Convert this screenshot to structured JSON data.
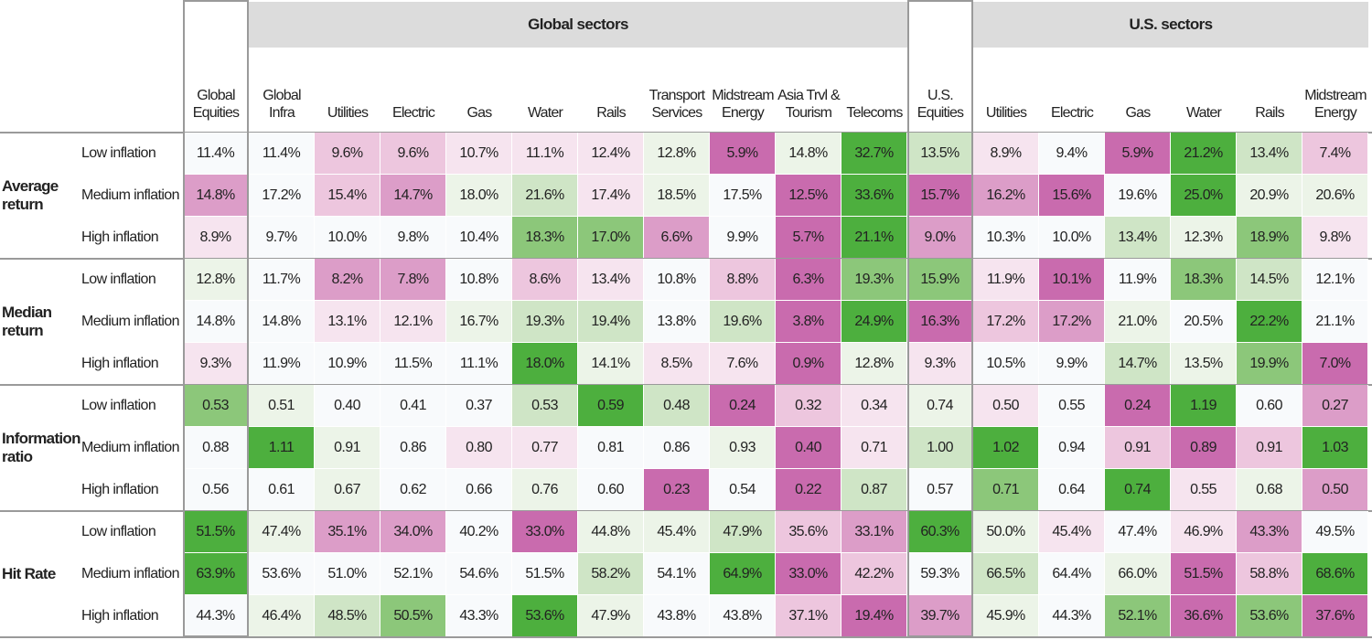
{
  "header": {
    "groups": [
      "Global sectors",
      "U.S. sectors"
    ],
    "columns": [
      "Global Equities",
      "Global Infra",
      "Utilities",
      "Electric",
      "Gas",
      "Water",
      "Rails",
      "Transport Services",
      "Midstream Energy",
      "Asia Trvl & Tourism",
      "Telecoms",
      "U.S. Equities",
      "Utilities",
      "Electric",
      "Gas",
      "Water",
      "Rails",
      "Midstream Energy"
    ]
  },
  "sections": [
    {
      "label": "Average return",
      "rows": [
        {
          "label": "Low inflation",
          "values": [
            "11.4%",
            "11.4%",
            "9.6%",
            "9.6%",
            "10.7%",
            "11.1%",
            "12.4%",
            "12.8%",
            "5.9%",
            "14.8%",
            "32.7%",
            "13.5%",
            "8.9%",
            "9.4%",
            "5.9%",
            "21.2%",
            "13.4%",
            "7.4%"
          ],
          "colors": [
            "#f8fafc",
            "#f8fafc",
            "#edc6de",
            "#edc6de",
            "#f6e4ef",
            "#f6e4ef",
            "#f6e4ef",
            "#ecf4e8",
            "#c96bae",
            "#ecf4e8",
            "#4daf3e",
            "#cfe5c6",
            "#f6e4ef",
            "#f8fafc",
            "#c96bae",
            "#4daf3e",
            "#cfe5c6",
            "#edc6de"
          ]
        },
        {
          "label": "Medium inflation",
          "values": [
            "14.8%",
            "17.2%",
            "15.4%",
            "14.7%",
            "18.0%",
            "21.6%",
            "17.4%",
            "18.5%",
            "17.5%",
            "12.5%",
            "33.6%",
            "15.7%",
            "16.2%",
            "15.6%",
            "19.6%",
            "25.0%",
            "20.9%",
            "20.6%"
          ],
          "colors": [
            "#dc9dc8",
            "#f8fafc",
            "#edc6de",
            "#dc9dc8",
            "#ecf4e8",
            "#cfe5c6",
            "#f6e4ef",
            "#ecf4e8",
            "#f8fafc",
            "#c96bae",
            "#4daf3e",
            "#c96bae",
            "#dc9dc8",
            "#c96bae",
            "#f8fafc",
            "#4daf3e",
            "#ecf4e8",
            "#ecf4e8"
          ]
        },
        {
          "label": "High inflation",
          "values": [
            "8.9%",
            "9.7%",
            "10.0%",
            "9.8%",
            "10.4%",
            "18.3%",
            "17.0%",
            "6.6%",
            "9.9%",
            "5.7%",
            "21.1%",
            "9.0%",
            "10.3%",
            "10.0%",
            "13.4%",
            "12.3%",
            "18.9%",
            "9.8%"
          ],
          "colors": [
            "#f6e4ef",
            "#f8fafc",
            "#f8fafc",
            "#f8fafc",
            "#f8fafc",
            "#8cc77a",
            "#8cc77a",
            "#dc9dc8",
            "#f8fafc",
            "#c96bae",
            "#4daf3e",
            "#dc9dc8",
            "#f8fafc",
            "#f8fafc",
            "#cfe5c6",
            "#ecf4e8",
            "#8cc77a",
            "#f6e4ef"
          ]
        }
      ]
    },
    {
      "label": "Median return",
      "rows": [
        {
          "label": "Low inflation",
          "values": [
            "12.8%",
            "11.7%",
            "8.2%",
            "7.8%",
            "10.8%",
            "8.6%",
            "13.4%",
            "10.8%",
            "8.8%",
            "6.3%",
            "19.3%",
            "15.9%",
            "11.9%",
            "10.1%",
            "11.9%",
            "18.3%",
            "14.5%",
            "12.1%"
          ],
          "colors": [
            "#ecf4e8",
            "#f8fafc",
            "#dc9dc8",
            "#dc9dc8",
            "#f8fafc",
            "#edc6de",
            "#f6e4ef",
            "#f8fafc",
            "#edc6de",
            "#c96bae",
            "#8cc77a",
            "#8cc77a",
            "#f6e4ef",
            "#c96bae",
            "#f8fafc",
            "#8cc77a",
            "#cfe5c6",
            "#f8fafc"
          ]
        },
        {
          "label": "Medium inflation",
          "values": [
            "14.8%",
            "14.8%",
            "13.1%",
            "12.1%",
            "16.7%",
            "19.3%",
            "19.4%",
            "13.8%",
            "19.6%",
            "3.8%",
            "24.9%",
            "16.3%",
            "17.2%",
            "17.2%",
            "21.0%",
            "20.5%",
            "22.2%",
            "21.1%"
          ],
          "colors": [
            "#f8fafc",
            "#f8fafc",
            "#f6e4ef",
            "#f6e4ef",
            "#ecf4e8",
            "#cfe5c6",
            "#cfe5c6",
            "#f8fafc",
            "#cfe5c6",
            "#c96bae",
            "#4daf3e",
            "#c96bae",
            "#edc6de",
            "#dc9dc8",
            "#ecf4e8",
            "#f8fafc",
            "#4daf3e",
            "#f8fafc"
          ]
        },
        {
          "label": "High inflation",
          "values": [
            "9.3%",
            "11.9%",
            "10.9%",
            "11.5%",
            "11.1%",
            "18.0%",
            "14.1%",
            "8.5%",
            "7.6%",
            "0.9%",
            "12.8%",
            "9.3%",
            "10.5%",
            "9.9%",
            "14.7%",
            "13.5%",
            "19.9%",
            "7.0%"
          ],
          "colors": [
            "#f6e4ef",
            "#f8fafc",
            "#f8fafc",
            "#f8fafc",
            "#f8fafc",
            "#4daf3e",
            "#ecf4e8",
            "#f6e4ef",
            "#f6e4ef",
            "#c96bae",
            "#ecf4e8",
            "#f6e4ef",
            "#f8fafc",
            "#f8fafc",
            "#cfe5c6",
            "#ecf4e8",
            "#8cc77a",
            "#c96bae"
          ]
        }
      ]
    },
    {
      "label": "Information ratio",
      "rows": [
        {
          "label": "Low inflation",
          "values": [
            "0.53",
            "0.51",
            "0.40",
            "0.41",
            "0.37",
            "0.53",
            "0.59",
            "0.48",
            "0.24",
            "0.32",
            "0.34",
            "0.74",
            "0.50",
            "0.55",
            "0.24",
            "1.19",
            "0.60",
            "0.27"
          ],
          "colors": [
            "#8cc77a",
            "#ecf4e8",
            "#f8fafc",
            "#f8fafc",
            "#f8fafc",
            "#cfe5c6",
            "#4daf3e",
            "#cfe5c6",
            "#c96bae",
            "#edc6de",
            "#f6e4ef",
            "#ecf4e8",
            "#f6e4ef",
            "#f8fafc",
            "#c96bae",
            "#4daf3e",
            "#f8fafc",
            "#dc9dc8"
          ]
        },
        {
          "label": "Medium inflation",
          "values": [
            "0.88",
            "1.11",
            "0.91",
            "0.86",
            "0.80",
            "0.77",
            "0.81",
            "0.86",
            "0.93",
            "0.40",
            "0.71",
            "1.00",
            "1.02",
            "0.94",
            "0.91",
            "0.89",
            "0.91",
            "1.03"
          ],
          "colors": [
            "#f8fafc",
            "#4daf3e",
            "#ecf4e8",
            "#f8fafc",
            "#f6e4ef",
            "#f6e4ef",
            "#f8fafc",
            "#f8fafc",
            "#ecf4e8",
            "#c96bae",
            "#f6e4ef",
            "#cfe5c6",
            "#4daf3e",
            "#f8fafc",
            "#edc6de",
            "#c96bae",
            "#edc6de",
            "#4daf3e"
          ]
        },
        {
          "label": "High inflation",
          "values": [
            "0.56",
            "0.61",
            "0.67",
            "0.62",
            "0.66",
            "0.76",
            "0.60",
            "0.23",
            "0.54",
            "0.22",
            "0.87",
            "0.57",
            "0.71",
            "0.64",
            "0.74",
            "0.55",
            "0.68",
            "0.50"
          ],
          "colors": [
            "#f8fafc",
            "#f8fafc",
            "#ecf4e8",
            "#f8fafc",
            "#f8fafc",
            "#ecf4e8",
            "#f8fafc",
            "#c96bae",
            "#f8fafc",
            "#c96bae",
            "#cfe5c6",
            "#f8fafc",
            "#8cc77a",
            "#f8fafc",
            "#4daf3e",
            "#f6e4ef",
            "#ecf4e8",
            "#dc9dc8"
          ]
        }
      ]
    },
    {
      "label": "Hit Rate",
      "rows": [
        {
          "label": "Low inflation",
          "values": [
            "51.5%",
            "47.4%",
            "35.1%",
            "34.0%",
            "40.2%",
            "33.0%",
            "44.8%",
            "45.4%",
            "47.9%",
            "35.6%",
            "33.1%",
            "60.3%",
            "50.0%",
            "45.4%",
            "47.4%",
            "46.9%",
            "43.3%",
            "49.5%"
          ],
          "colors": [
            "#4daf3e",
            "#ecf4e8",
            "#dc9dc8",
            "#dc9dc8",
            "#f8fafc",
            "#c96bae",
            "#ecf4e8",
            "#ecf4e8",
            "#cfe5c6",
            "#edc6de",
            "#dc9dc8",
            "#4daf3e",
            "#ecf4e8",
            "#f6e4ef",
            "#f8fafc",
            "#f6e4ef",
            "#dc9dc8",
            "#f8fafc"
          ]
        },
        {
          "label": "Medium inflation",
          "values": [
            "63.9%",
            "53.6%",
            "51.0%",
            "52.1%",
            "54.6%",
            "51.5%",
            "58.2%",
            "54.1%",
            "64.9%",
            "33.0%",
            "42.2%",
            "59.3%",
            "66.5%",
            "64.4%",
            "66.0%",
            "51.5%",
            "58.8%",
            "68.6%"
          ],
          "colors": [
            "#4daf3e",
            "#f8fafc",
            "#f8fafc",
            "#f8fafc",
            "#f8fafc",
            "#f8fafc",
            "#cfe5c6",
            "#f8fafc",
            "#4daf3e",
            "#c96bae",
            "#edc6de",
            "#f8fafc",
            "#cfe5c6",
            "#f8fafc",
            "#ecf4e8",
            "#c96bae",
            "#edc6de",
            "#4daf3e"
          ]
        },
        {
          "label": "High inflation",
          "values": [
            "44.3%",
            "46.4%",
            "48.5%",
            "50.5%",
            "43.3%",
            "53.6%",
            "47.9%",
            "43.8%",
            "43.8%",
            "37.1%",
            "19.4%",
            "39.7%",
            "45.9%",
            "44.3%",
            "52.1%",
            "36.6%",
            "53.6%",
            "37.6%"
          ],
          "colors": [
            "#f8fafc",
            "#ecf4e8",
            "#cfe5c6",
            "#8cc77a",
            "#f8fafc",
            "#4daf3e",
            "#ecf4e8",
            "#f8fafc",
            "#f8fafc",
            "#edc6de",
            "#c96bae",
            "#dc9dc8",
            "#ecf4e8",
            "#f8fafc",
            "#8cc77a",
            "#c96bae",
            "#8cc77a",
            "#c96bae"
          ]
        }
      ]
    }
  ]
}
